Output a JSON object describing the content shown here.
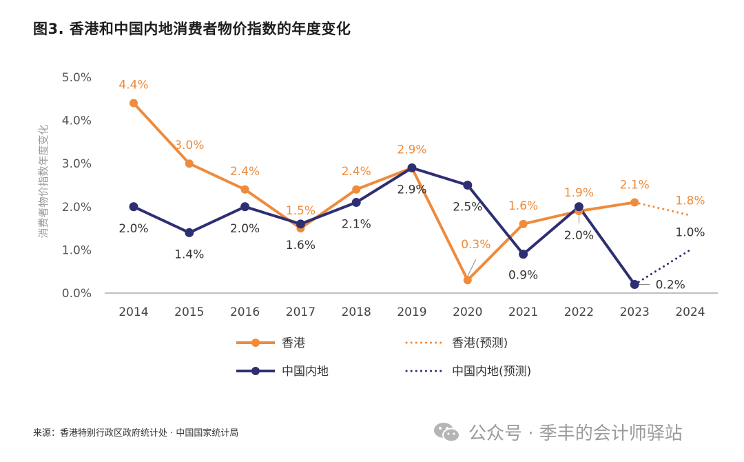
{
  "title": "图3. 香港和中国内地消费者物价指数的年度变化",
  "source": "来源：香港特别行政区政府统计处 · 中国国家统计局",
  "watermark": "公众号 · 季丰的会计师驿站",
  "colors": {
    "hk": "#EE8B3C",
    "cn": "#2E2F72",
    "axis_text": "#444444",
    "ylabel": "#999999",
    "grid": "#9a9a9a"
  },
  "chart_data": {
    "type": "line",
    "title": "图3. 香港和中国内地消费者物价指数的年度变化",
    "xlabel": "",
    "ylabel": "消费者物价指数年度变化",
    "ylim": [
      0,
      5
    ],
    "yticks": [
      "0.0%",
      "1.0%",
      "2.0%",
      "3.0%",
      "4.0%",
      "5.0%"
    ],
    "categories": [
      "2014",
      "2015",
      "2016",
      "2017",
      "2018",
      "2019",
      "2020",
      "2021",
      "2022",
      "2023",
      "2024"
    ],
    "grid": false,
    "series": [
      {
        "name": "香港",
        "color": "#EE8B3C",
        "values": [
          4.4,
          3.0,
          2.4,
          1.5,
          2.4,
          2.9,
          0.3,
          1.6,
          1.9,
          2.1,
          null
        ],
        "labels": [
          "4.4%",
          "3.0%",
          "2.4%",
          "1.5%",
          "2.4%",
          "2.9%",
          "0.3%",
          "1.6%",
          "1.9%",
          "2.1%",
          ""
        ]
      },
      {
        "name": "中国内地",
        "color": "#2E2F72",
        "values": [
          2.0,
          1.4,
          2.0,
          1.6,
          2.1,
          2.9,
          2.5,
          0.9,
          2.0,
          0.2,
          null
        ],
        "labels": [
          "2.0%",
          "1.4%",
          "2.0%",
          "1.6%",
          "2.1%",
          "2.9%",
          "2.5%",
          "0.9%",
          "2.0%",
          "0.2%",
          ""
        ]
      },
      {
        "name": "香港(预测)",
        "color": "#EE8B3C",
        "dashed": true,
        "values": [
          null,
          null,
          null,
          null,
          null,
          null,
          null,
          null,
          null,
          2.1,
          1.8
        ],
        "labels": [
          "",
          "",
          "",
          "",
          "",
          "",
          "",
          "",
          "",
          "",
          "1.8%"
        ]
      },
      {
        "name": "中国内地(预测)",
        "color": "#2E2F72",
        "dashed": true,
        "values": [
          null,
          null,
          null,
          null,
          null,
          null,
          null,
          null,
          null,
          0.2,
          1.0
        ],
        "labels": [
          "",
          "",
          "",
          "",
          "",
          "",
          "",
          "",
          "",
          "",
          "1.0%"
        ]
      }
    ],
    "legend": [
      {
        "label": "香港",
        "color": "#EE8B3C",
        "style": "solid"
      },
      {
        "label": "香港(预测)",
        "color": "#EE8B3C",
        "style": "dotted"
      },
      {
        "label": "中国内地",
        "color": "#2E2F72",
        "style": "solid"
      },
      {
        "label": "中国内地(预测)",
        "color": "#2E2F72",
        "style": "dotted"
      }
    ],
    "legend_position": "bottom"
  }
}
